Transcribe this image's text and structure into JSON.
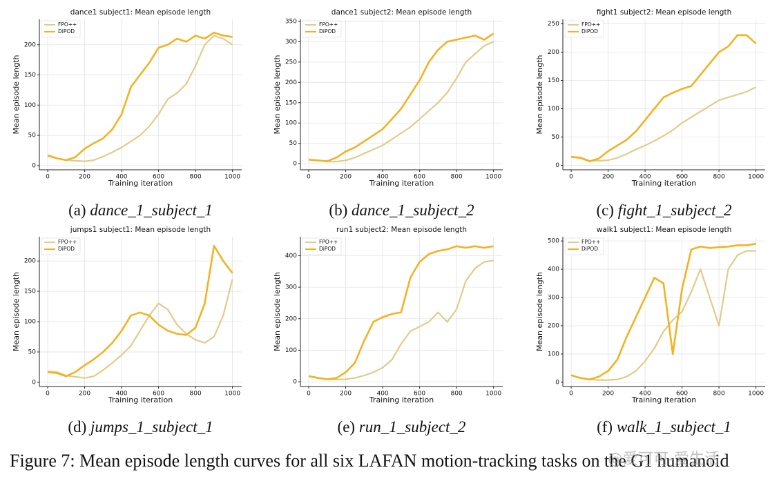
{
  "chart_data": [
    {
      "type": "line",
      "title": "dance1 subject1: Mean episode length",
      "xlabel": "Training iteration",
      "ylabel": "Mean episode length",
      "caption_tag": "(a)",
      "caption": "dance_1_subject_1",
      "legend": "upper left",
      "grid": true,
      "x": [
        0,
        50,
        100,
        150,
        200,
        250,
        300,
        350,
        400,
        450,
        500,
        550,
        600,
        650,
        700,
        750,
        800,
        850,
        900,
        950,
        1000
      ],
      "xlim": [
        -45,
        1050
      ],
      "xticks": [
        0,
        200,
        400,
        600,
        800,
        1000
      ],
      "ylim": [
        -7,
        242
      ],
      "yticks": [
        0,
        50,
        100,
        150,
        200
      ],
      "series": [
        {
          "name": "FPO++",
          "color": "#e0cc8a",
          "values": [
            16,
            12,
            9,
            8,
            7,
            9,
            15,
            22,
            30,
            40,
            50,
            65,
            85,
            110,
            120,
            135,
            165,
            200,
            215,
            210,
            200
          ]
        },
        {
          "name": "DiPOD",
          "color": "#f5b120",
          "values": [
            17,
            12,
            9,
            14,
            28,
            37,
            45,
            60,
            85,
            130,
            150,
            170,
            195,
            200,
            210,
            205,
            215,
            210,
            220,
            215,
            213
          ]
        }
      ]
    },
    {
      "type": "line",
      "title": "dance1 subject2: Mean episode length",
      "xlabel": "Training iteration",
      "ylabel": "Mean episode length",
      "caption_tag": "(b)",
      "caption": "dance_1_subject_2",
      "legend": "upper left",
      "grid": true,
      "x": [
        0,
        50,
        100,
        150,
        200,
        250,
        300,
        350,
        400,
        450,
        500,
        550,
        600,
        650,
        700,
        750,
        800,
        850,
        900,
        950,
        1000
      ],
      "xlim": [
        -45,
        1050
      ],
      "xticks": [
        0,
        200,
        400,
        600,
        800,
        1000
      ],
      "ylim": [
        -15,
        355
      ],
      "yticks": [
        0,
        50,
        100,
        150,
        200,
        250,
        300,
        350
      ],
      "series": [
        {
          "name": "FPO++",
          "color": "#e0cc8a",
          "values": [
            10,
            8,
            5,
            5,
            8,
            15,
            25,
            35,
            45,
            60,
            75,
            90,
            110,
            130,
            150,
            175,
            210,
            250,
            270,
            290,
            300
          ]
        },
        {
          "name": "DiPOD",
          "color": "#f5b120",
          "values": [
            10,
            8,
            6,
            15,
            30,
            40,
            55,
            70,
            85,
            110,
            135,
            170,
            205,
            250,
            280,
            300,
            305,
            310,
            315,
            305,
            320
          ]
        }
      ]
    },
    {
      "type": "line",
      "title": "fight1 subject2: Mean episode length",
      "xlabel": "Training iteration",
      "ylabel": "Mean episode length",
      "caption_tag": "(c)",
      "caption": "fight_1_subject_2",
      "legend": "upper left",
      "grid": true,
      "x": [
        0,
        50,
        100,
        150,
        200,
        250,
        300,
        350,
        400,
        450,
        500,
        550,
        600,
        650,
        700,
        750,
        800,
        850,
        900,
        950,
        1000
      ],
      "xlim": [
        -45,
        1050
      ],
      "xticks": [
        0,
        200,
        400,
        600,
        800,
        1000
      ],
      "ylim": [
        -8,
        258
      ],
      "yticks": [
        0,
        50,
        100,
        150,
        200,
        250
      ],
      "series": [
        {
          "name": "FPO++",
          "color": "#e0cc8a",
          "values": [
            15,
            14,
            8,
            8,
            9,
            13,
            20,
            28,
            35,
            43,
            52,
            62,
            75,
            85,
            95,
            105,
            115,
            120,
            125,
            130,
            138
          ]
        },
        {
          "name": "DiPOD",
          "color": "#f5b120",
          "values": [
            15,
            13,
            7,
            12,
            25,
            35,
            45,
            60,
            80,
            100,
            120,
            128,
            135,
            140,
            160,
            180,
            200,
            210,
            230,
            230,
            215
          ]
        }
      ]
    },
    {
      "type": "line",
      "title": "jumps1 subject1: Mean episode length",
      "xlabel": "Training iteration",
      "ylabel": "Mean episode length",
      "caption_tag": "(d)",
      "caption": "jumps_1_subject_1",
      "legend": "upper left",
      "grid": true,
      "x": [
        0,
        50,
        100,
        150,
        200,
        250,
        300,
        350,
        400,
        450,
        500,
        550,
        600,
        650,
        700,
        750,
        800,
        850,
        900,
        950,
        1000
      ],
      "xlim": [
        -45,
        1050
      ],
      "xticks": [
        0,
        200,
        400,
        600,
        800,
        1000
      ],
      "ylim": [
        -7,
        240
      ],
      "yticks": [
        0,
        50,
        100,
        150,
        200
      ],
      "series": [
        {
          "name": "FPO++",
          "color": "#e0cc8a",
          "values": [
            18,
            17,
            11,
            9,
            7,
            10,
            20,
            32,
            45,
            60,
            85,
            110,
            130,
            120,
            95,
            80,
            70,
            65,
            75,
            110,
            170
          ]
        },
        {
          "name": "DiPOD",
          "color": "#f5b120",
          "values": [
            17,
            15,
            10,
            17,
            28,
            38,
            50,
            65,
            85,
            110,
            115,
            110,
            95,
            85,
            80,
            78,
            90,
            130,
            225,
            200,
            180
          ]
        }
      ]
    },
    {
      "type": "line",
      "title": "run1 subject2: Mean episode length",
      "xlabel": "Training iteration",
      "ylabel": "Mean episode length",
      "caption_tag": "(e)",
      "caption": "run_1_subject_2",
      "legend": "upper left",
      "grid": true,
      "x": [
        0,
        50,
        100,
        150,
        200,
        250,
        300,
        350,
        400,
        450,
        500,
        550,
        600,
        650,
        700,
        750,
        800,
        850,
        900,
        950,
        1000
      ],
      "xlim": [
        -45,
        1050
      ],
      "xticks": [
        0,
        200,
        400,
        600,
        800,
        1000
      ],
      "ylim": [
        -15,
        460
      ],
      "yticks": [
        0,
        100,
        200,
        300,
        400
      ],
      "series": [
        {
          "name": "FPO++",
          "color": "#e0cc8a",
          "values": [
            18,
            13,
            8,
            7,
            8,
            12,
            20,
            30,
            45,
            70,
            120,
            160,
            175,
            190,
            220,
            190,
            230,
            320,
            360,
            380,
            385
          ]
        },
        {
          "name": "DiPOD",
          "color": "#f5b120",
          "values": [
            18,
            12,
            8,
            12,
            30,
            60,
            130,
            190,
            205,
            215,
            220,
            330,
            380,
            405,
            415,
            420,
            430,
            425,
            430,
            425,
            430
          ]
        }
      ]
    },
    {
      "type": "line",
      "title": "walk1 subject1: Mean episode length",
      "xlabel": "Training iteration",
      "ylabel": "Mean episode length",
      "caption_tag": "(f)",
      "caption": "walk_1_subject_1",
      "legend": "upper left",
      "grid": true,
      "x": [
        0,
        50,
        100,
        150,
        200,
        250,
        300,
        350,
        400,
        450,
        500,
        550,
        600,
        650,
        700,
        750,
        800,
        850,
        900,
        950,
        1000
      ],
      "xlim": [
        -45,
        1050
      ],
      "xticks": [
        0,
        200,
        400,
        600,
        800,
        1000
      ],
      "ylim": [
        -15,
        515
      ],
      "yticks": [
        0,
        100,
        200,
        300,
        400,
        500
      ],
      "series": [
        {
          "name": "FPO++",
          "color": "#e0cc8a",
          "values": [
            25,
            15,
            10,
            8,
            8,
            10,
            20,
            40,
            75,
            120,
            180,
            220,
            250,
            320,
            400,
            300,
            200,
            400,
            450,
            465,
            465
          ]
        },
        {
          "name": "DiPOD",
          "color": "#f5b120",
          "values": [
            25,
            15,
            10,
            20,
            40,
            80,
            160,
            230,
            300,
            370,
            350,
            100,
            330,
            470,
            480,
            475,
            478,
            480,
            485,
            485,
            490
          ]
        }
      ]
    }
  ],
  "figure_caption": "Figure 7: Mean episode length curves for all six LAFAN motion-tracking tasks on the G1 humanoid",
  "watermark": "@爱可可-爱生活"
}
